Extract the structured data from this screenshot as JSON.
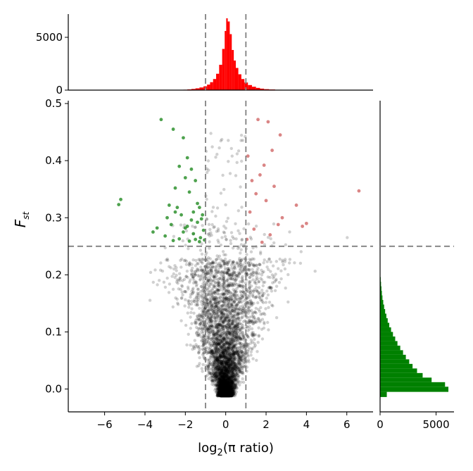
{
  "chart_data": {
    "type": "scatter",
    "title": "",
    "xlabel": "log2(π ratio)",
    "ylabel": "Fst",
    "xlim": [
      -7.8,
      7.3
    ],
    "ylim": [
      -0.04,
      0.505
    ],
    "xticks": [
      -6,
      -4,
      -2,
      0,
      2,
      4,
      6
    ],
    "xtick_labels": [
      "−6",
      "−4",
      "−2",
      "0",
      "2",
      "4",
      "6"
    ],
    "yticks": [
      0.0,
      0.1,
      0.2,
      0.3,
      0.4,
      0.5
    ],
    "ytick_labels": [
      "0.0",
      "0.1",
      "0.2",
      "0.3",
      "0.4",
      "0.5"
    ],
    "thresholds": {
      "x": [
        -1,
        1
      ],
      "y": 0.25
    },
    "grid": false,
    "legend": "none",
    "colors": {
      "background": "#000000",
      "low_pi_selected": "#228B22",
      "high_pi_selected": "#CD5C5C",
      "top_hist": "#FF0000",
      "right_hist": "#008000",
      "threshold_line": "#808080"
    },
    "top_histogram": {
      "ylim": [
        0,
        7200
      ],
      "yticks": [
        0,
        5000
      ],
      "ytick_labels": [
        "0",
        "5000"
      ],
      "bins": [
        {
          "x": -2.0,
          "count": 40
        },
        {
          "x": -1.8,
          "count": 70
        },
        {
          "x": -1.6,
          "count": 110
        },
        {
          "x": -1.4,
          "count": 170
        },
        {
          "x": -1.2,
          "count": 250
        },
        {
          "x": -1.0,
          "count": 360
        },
        {
          "x": -0.85,
          "count": 520
        },
        {
          "x": -0.7,
          "count": 750
        },
        {
          "x": -0.55,
          "count": 1050
        },
        {
          "x": -0.4,
          "count": 1550
        },
        {
          "x": -0.25,
          "count": 2400
        },
        {
          "x": -0.1,
          "count": 3900
        },
        {
          "x": 0.0,
          "count": 5600
        },
        {
          "x": 0.05,
          "count": 6800
        },
        {
          "x": 0.15,
          "count": 6500
        },
        {
          "x": 0.25,
          "count": 5300
        },
        {
          "x": 0.35,
          "count": 3800
        },
        {
          "x": 0.45,
          "count": 2800
        },
        {
          "x": 0.55,
          "count": 2100
        },
        {
          "x": 0.7,
          "count": 1500
        },
        {
          "x": 0.85,
          "count": 1050
        },
        {
          "x": 1.0,
          "count": 720
        },
        {
          "x": 1.2,
          "count": 480
        },
        {
          "x": 1.4,
          "count": 320
        },
        {
          "x": 1.6,
          "count": 210
        },
        {
          "x": 1.8,
          "count": 140
        },
        {
          "x": 2.0,
          "count": 90
        },
        {
          "x": 2.3,
          "count": 60
        },
        {
          "x": 2.6,
          "count": 35
        },
        {
          "x": 3.0,
          "count": 20
        }
      ]
    },
    "right_histogram": {
      "xlim": [
        0,
        6600
      ],
      "xticks": [
        0,
        5000
      ],
      "xtick_labels": [
        "0",
        "5000"
      ],
      "bins": [
        {
          "fst": -0.01,
          "count": 600
        },
        {
          "fst": 0.0,
          "count": 6100
        },
        {
          "fst": 0.008,
          "count": 5800
        },
        {
          "fst": 0.016,
          "count": 4600
        },
        {
          "fst": 0.024,
          "count": 3800
        },
        {
          "fst": 0.032,
          "count": 3300
        },
        {
          "fst": 0.04,
          "count": 2900
        },
        {
          "fst": 0.048,
          "count": 2600
        },
        {
          "fst": 0.056,
          "count": 2300
        },
        {
          "fst": 0.064,
          "count": 2050
        },
        {
          "fst": 0.072,
          "count": 1800
        },
        {
          "fst": 0.08,
          "count": 1550
        },
        {
          "fst": 0.088,
          "count": 1350
        },
        {
          "fst": 0.096,
          "count": 1150
        },
        {
          "fst": 0.104,
          "count": 980
        },
        {
          "fst": 0.112,
          "count": 820
        },
        {
          "fst": 0.12,
          "count": 680
        },
        {
          "fst": 0.128,
          "count": 560
        },
        {
          "fst": 0.136,
          "count": 450
        },
        {
          "fst": 0.144,
          "count": 360
        },
        {
          "fst": 0.152,
          "count": 280
        },
        {
          "fst": 0.16,
          "count": 210
        },
        {
          "fst": 0.168,
          "count": 160
        },
        {
          "fst": 0.176,
          "count": 120
        },
        {
          "fst": 0.184,
          "count": 85
        },
        {
          "fst": 0.192,
          "count": 55
        },
        {
          "fst": 0.2,
          "count": 30
        }
      ]
    },
    "highlighted_points": {
      "low_pi_selected": [
        [
          -3.2,
          0.472
        ],
        [
          -2.6,
          0.455
        ],
        [
          -2.1,
          0.44
        ],
        [
          -1.9,
          0.405
        ],
        [
          -2.3,
          0.39
        ],
        [
          -1.7,
          0.385
        ],
        [
          -2.0,
          0.37
        ],
        [
          -1.5,
          0.365
        ],
        [
          -2.5,
          0.352
        ],
        [
          -1.8,
          0.345
        ],
        [
          -5.2,
          0.332
        ],
        [
          -5.3,
          0.323
        ],
        [
          -2.4,
          0.318
        ],
        [
          -1.3,
          0.318
        ],
        [
          -1.6,
          0.31
        ],
        [
          -2.2,
          0.305
        ],
        [
          -2.9,
          0.3
        ],
        [
          -1.2,
          0.298
        ],
        [
          -1.4,
          0.292
        ],
        [
          -2.7,
          0.288
        ],
        [
          -1.9,
          0.285
        ],
        [
          -3.4,
          0.282
        ],
        [
          -1.1,
          0.278
        ],
        [
          -2.1,
          0.275
        ],
        [
          -1.6,
          0.272
        ],
        [
          -3.0,
          0.268
        ],
        [
          -1.25,
          0.265
        ],
        [
          -2.3,
          0.263
        ],
        [
          -1.5,
          0.262
        ],
        [
          -1.05,
          0.261
        ],
        [
          -2.6,
          0.26
        ],
        [
          -1.8,
          0.259
        ],
        [
          -1.3,
          0.258
        ],
        [
          -2.0,
          0.282
        ],
        [
          -1.7,
          0.296
        ],
        [
          -2.5,
          0.31
        ],
        [
          -1.4,
          0.325
        ],
        [
          -3.6,
          0.275
        ],
        [
          -2.8,
          0.322
        ],
        [
          -1.15,
          0.305
        ]
      ],
      "high_pi_selected": [
        [
          1.6,
          0.472
        ],
        [
          2.1,
          0.468
        ],
        [
          2.7,
          0.445
        ],
        [
          2.3,
          0.418
        ],
        [
          1.1,
          0.408
        ],
        [
          1.9,
          0.392
        ],
        [
          1.7,
          0.375
        ],
        [
          1.3,
          0.365
        ],
        [
          2.4,
          0.355
        ],
        [
          1.5,
          0.342
        ],
        [
          6.6,
          0.347
        ],
        [
          2.0,
          0.33
        ],
        [
          3.5,
          0.322
        ],
        [
          1.2,
          0.31
        ],
        [
          2.8,
          0.3
        ],
        [
          3.8,
          0.285
        ],
        [
          1.4,
          0.28
        ],
        [
          2.2,
          0.27
        ],
        [
          1.05,
          0.262
        ],
        [
          1.8,
          0.257
        ],
        [
          4.0,
          0.29
        ],
        [
          2.6,
          0.288
        ]
      ]
    }
  }
}
